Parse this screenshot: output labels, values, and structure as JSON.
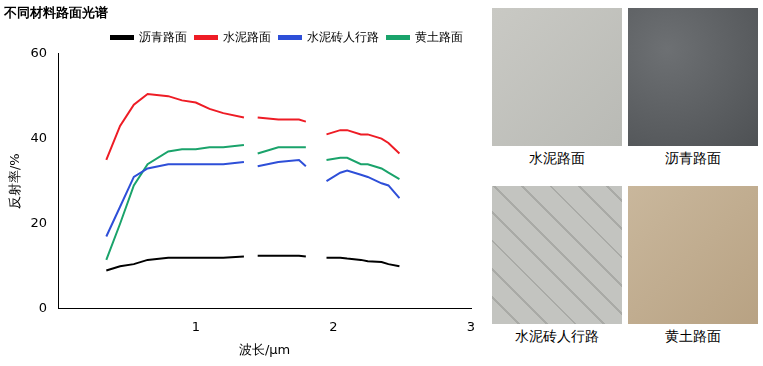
{
  "chart_data": {
    "type": "line",
    "title": "不同材料路面光谱",
    "x_label": "波长/μm",
    "y_label": "反射率/%",
    "x": [
      0.35,
      0.45,
      0.55,
      0.65,
      0.8,
      0.9,
      1.0,
      1.1,
      1.2,
      1.35,
      1.4,
      1.45,
      1.6,
      1.75,
      1.8,
      1.87,
      1.95,
      2.05,
      2.1,
      2.2,
      2.25,
      2.35,
      2.4,
      2.48
    ],
    "series": [
      {
        "name": "沥青路面",
        "color": "#000000",
        "values": [
          9,
          10,
          10.5,
          11.5,
          12,
          12,
          12,
          12,
          12,
          12.3,
          null,
          12.5,
          12.5,
          12.5,
          12.3,
          null,
          12,
          12,
          11.8,
          11.5,
          11.2,
          11,
          10.5,
          10
        ]
      },
      {
        "name": "水泥路面",
        "color": "#ee1c25",
        "values": [
          35,
          43,
          48,
          50.5,
          50,
          49,
          48.5,
          47,
          46,
          45,
          null,
          45,
          44.5,
          44.5,
          44,
          null,
          41,
          42,
          42,
          41,
          41,
          40,
          39,
          36.5
        ]
      },
      {
        "name": "水泥砖人行路",
        "color": "#2e4fd8",
        "values": [
          17,
          24,
          31,
          33,
          34,
          34,
          34,
          34,
          34,
          34.5,
          null,
          33.5,
          34.5,
          35,
          33.5,
          null,
          30,
          32,
          32.5,
          31.5,
          31,
          29.5,
          29,
          26
        ]
      },
      {
        "name": "黄土路面",
        "color": "#1aa36b",
        "values": [
          11.5,
          20,
          29,
          34,
          37,
          37.5,
          37.5,
          38,
          38,
          38.5,
          null,
          36.5,
          38,
          38,
          38,
          null,
          35,
          35.5,
          35.5,
          34,
          34,
          33,
          32,
          30.5
        ]
      }
    ],
    "xlim": [
      0,
      3
    ],
    "xticks": [
      1,
      2,
      3
    ],
    "ylim": [
      0,
      60
    ],
    "yticks": [
      0,
      20,
      40,
      60
    ],
    "grid": false,
    "legend": "top-right"
  },
  "panels": [
    {
      "caption": "水泥路面"
    },
    {
      "caption": "沥青路面"
    },
    {
      "caption": "水泥砖人行路"
    },
    {
      "caption": "黄土路面"
    }
  ]
}
